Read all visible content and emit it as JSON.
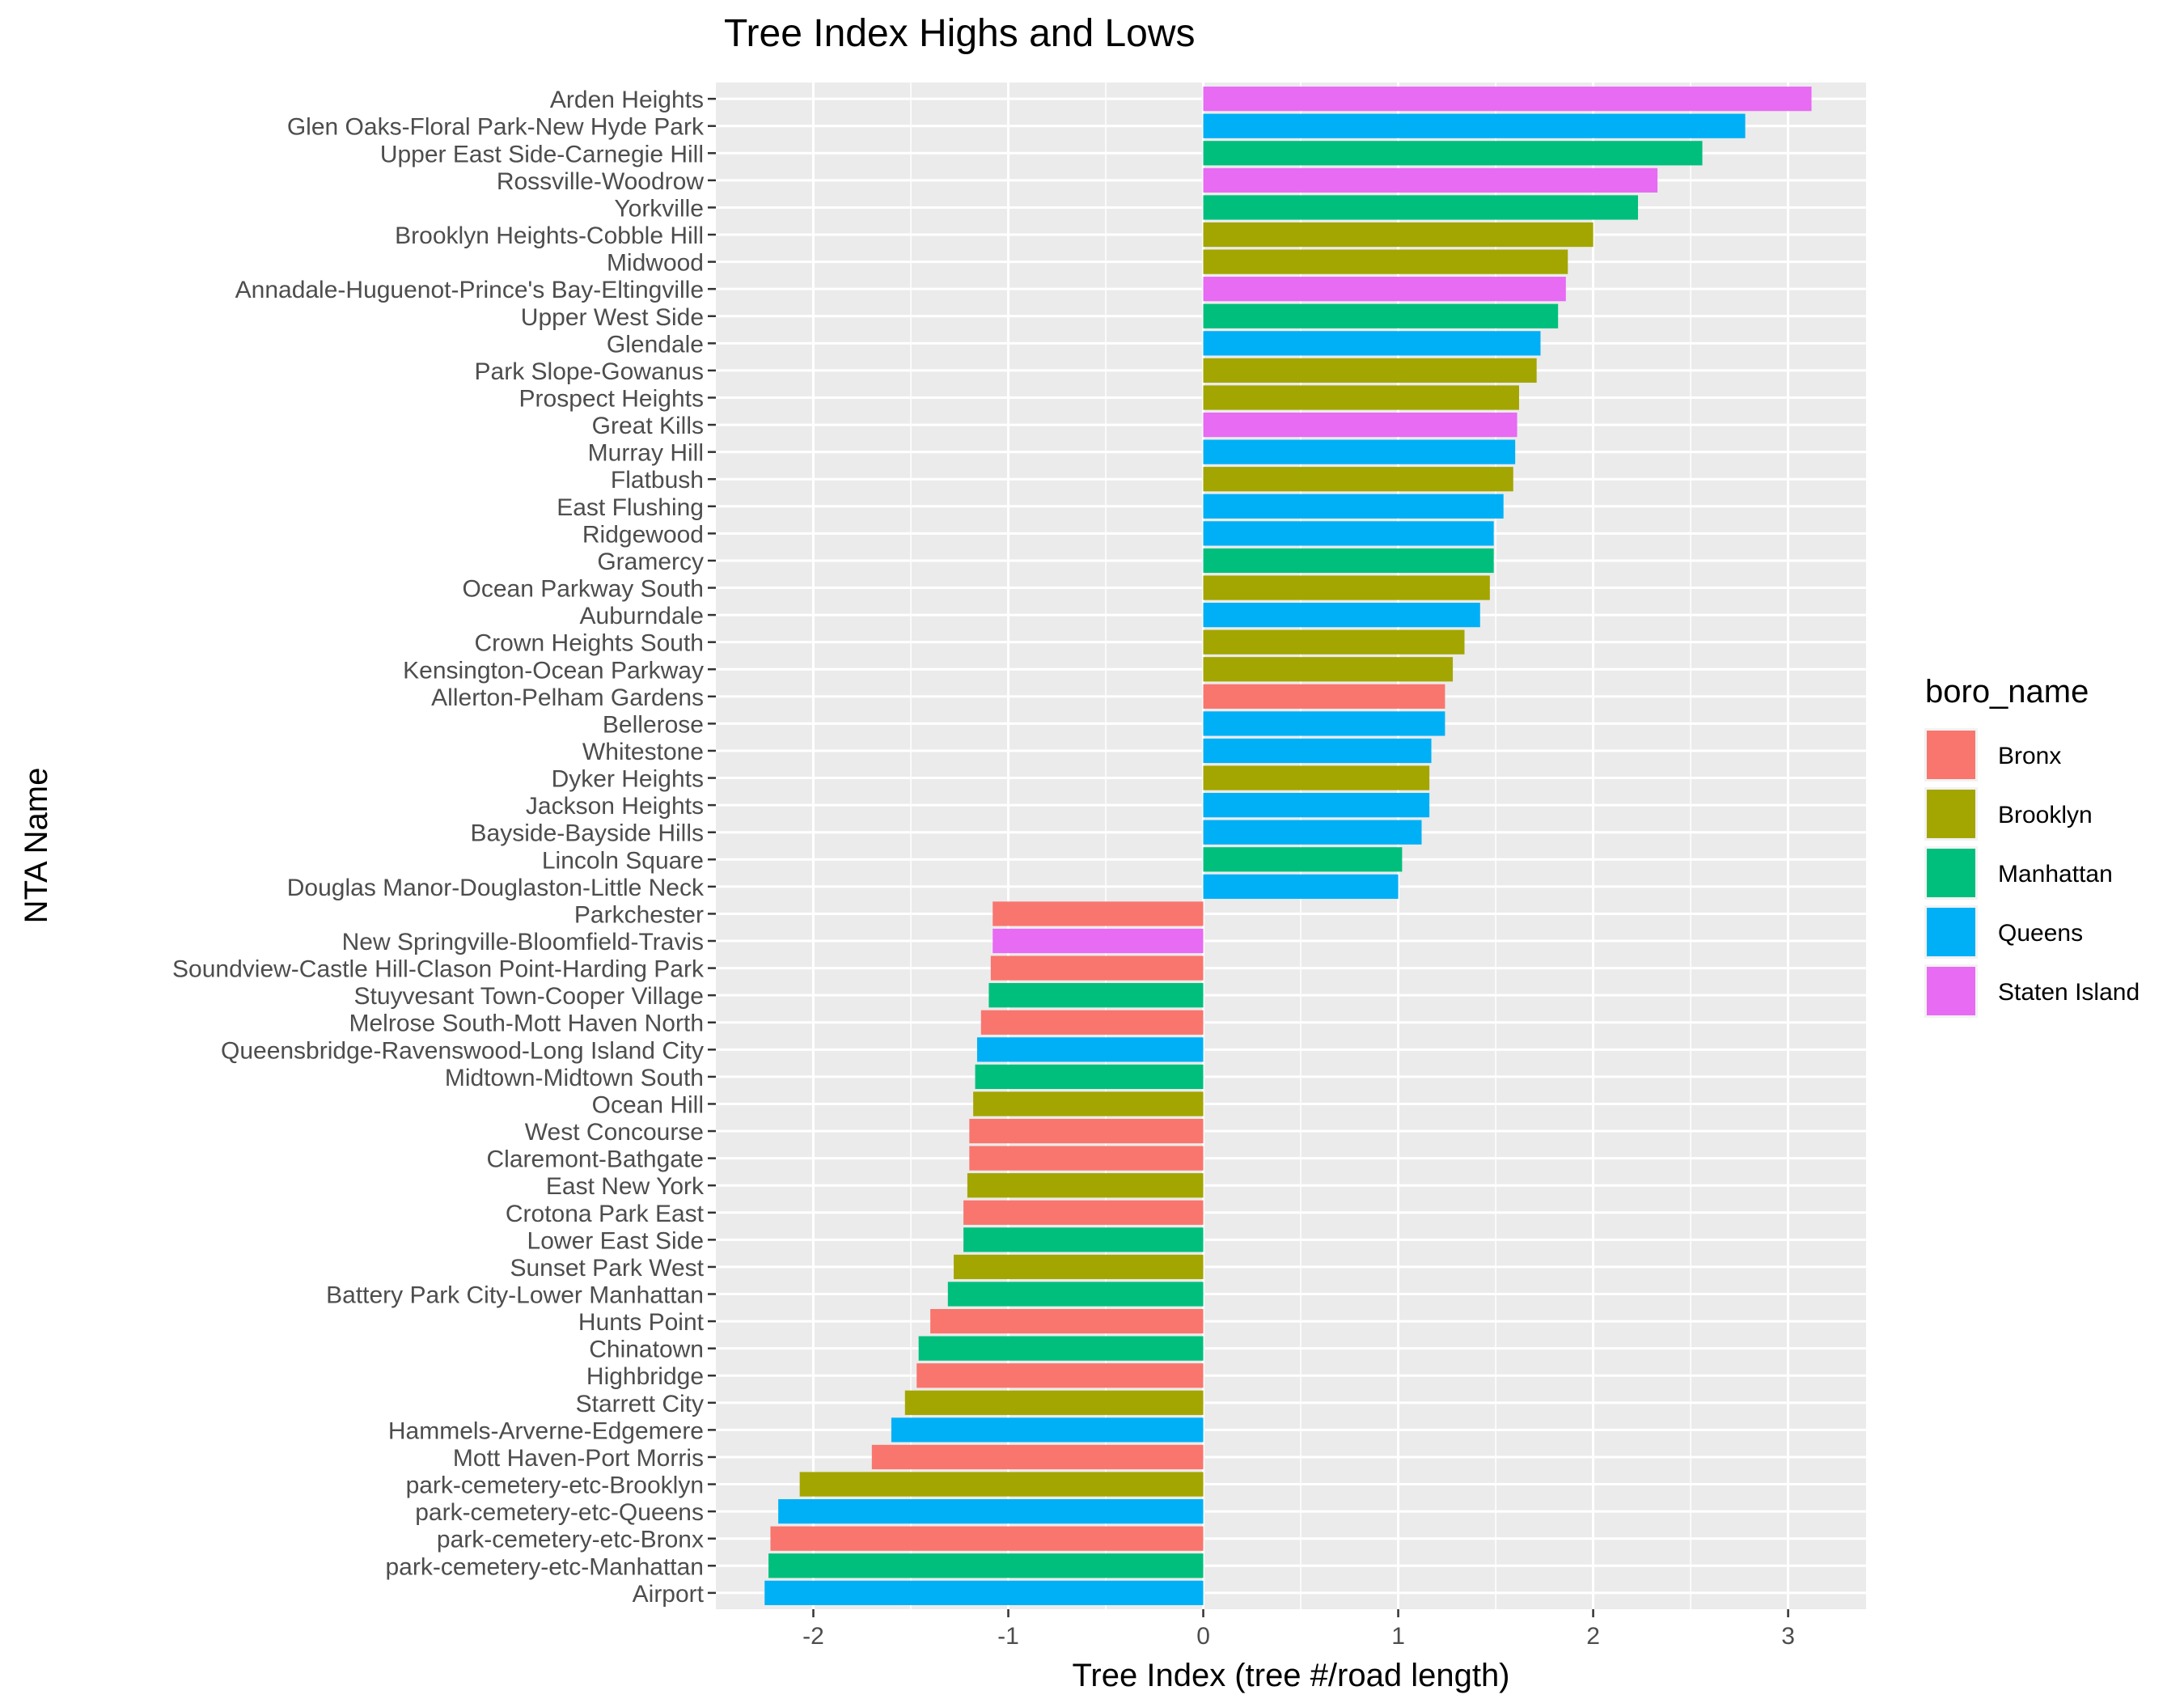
{
  "chart_data": {
    "type": "bar",
    "orientation": "horizontal",
    "title": "Tree Index Highs and Lows",
    "xlabel": "Tree Index (tree #/road length)",
    "ylabel": "NTA Name",
    "xlim": [
      -2.5,
      3.4
    ],
    "xticks": [
      -2,
      -1,
      0,
      1,
      2,
      3
    ],
    "xtick_labels": [
      "-2",
      "-1",
      "0",
      "1",
      "2",
      "3"
    ],
    "grid": true,
    "legend_position": "right",
    "legend": {
      "title": "boro_name",
      "items": [
        {
          "name": "Bronx",
          "color": "#F8766D"
        },
        {
          "name": "Brooklyn",
          "color": "#A3A500"
        },
        {
          "name": "Manhattan",
          "color": "#00BF7D"
        },
        {
          "name": "Queens",
          "color": "#00B0F6"
        },
        {
          "name": "Staten Island",
          "color": "#E76BF3"
        }
      ]
    },
    "bars": [
      {
        "name": "Arden Heights",
        "value": 3.12,
        "boro": "Staten Island"
      },
      {
        "name": "Glen Oaks-Floral Park-New Hyde Park",
        "value": 2.78,
        "boro": "Queens"
      },
      {
        "name": "Upper East Side-Carnegie Hill",
        "value": 2.56,
        "boro": "Manhattan"
      },
      {
        "name": "Rossville-Woodrow",
        "value": 2.33,
        "boro": "Staten Island"
      },
      {
        "name": "Yorkville",
        "value": 2.23,
        "boro": "Manhattan"
      },
      {
        "name": "Brooklyn Heights-Cobble Hill",
        "value": 2.0,
        "boro": "Brooklyn"
      },
      {
        "name": "Midwood",
        "value": 1.87,
        "boro": "Brooklyn"
      },
      {
        "name": "Annadale-Huguenot-Prince's Bay-Eltingville",
        "value": 1.86,
        "boro": "Staten Island"
      },
      {
        "name": "Upper West Side",
        "value": 1.82,
        "boro": "Manhattan"
      },
      {
        "name": "Glendale",
        "value": 1.73,
        "boro": "Queens"
      },
      {
        "name": "Park Slope-Gowanus",
        "value": 1.71,
        "boro": "Brooklyn"
      },
      {
        "name": "Prospect Heights",
        "value": 1.62,
        "boro": "Brooklyn"
      },
      {
        "name": "Great Kills",
        "value": 1.61,
        "boro": "Staten Island"
      },
      {
        "name": "Murray Hill",
        "value": 1.6,
        "boro": "Queens"
      },
      {
        "name": "Flatbush",
        "value": 1.59,
        "boro": "Brooklyn"
      },
      {
        "name": "East Flushing",
        "value": 1.54,
        "boro": "Queens"
      },
      {
        "name": "Ridgewood",
        "value": 1.49,
        "boro": "Queens"
      },
      {
        "name": "Gramercy",
        "value": 1.49,
        "boro": "Manhattan"
      },
      {
        "name": "Ocean Parkway South",
        "value": 1.47,
        "boro": "Brooklyn"
      },
      {
        "name": "Auburndale",
        "value": 1.42,
        "boro": "Queens"
      },
      {
        "name": "Crown Heights South",
        "value": 1.34,
        "boro": "Brooklyn"
      },
      {
        "name": "Kensington-Ocean Parkway",
        "value": 1.28,
        "boro": "Brooklyn"
      },
      {
        "name": "Allerton-Pelham Gardens",
        "value": 1.24,
        "boro": "Bronx"
      },
      {
        "name": "Bellerose",
        "value": 1.24,
        "boro": "Queens"
      },
      {
        "name": "Whitestone",
        "value": 1.17,
        "boro": "Queens"
      },
      {
        "name": "Dyker Heights",
        "value": 1.16,
        "boro": "Brooklyn"
      },
      {
        "name": "Jackson Heights",
        "value": 1.16,
        "boro": "Queens"
      },
      {
        "name": "Bayside-Bayside Hills",
        "value": 1.12,
        "boro": "Queens"
      },
      {
        "name": "Lincoln Square",
        "value": 1.02,
        "boro": "Manhattan"
      },
      {
        "name": "Douglas Manor-Douglaston-Little Neck",
        "value": 1.0,
        "boro": "Queens"
      },
      {
        "name": "Parkchester",
        "value": -1.08,
        "boro": "Bronx"
      },
      {
        "name": "New Springville-Bloomfield-Travis",
        "value": -1.08,
        "boro": "Staten Island"
      },
      {
        "name": "Soundview-Castle Hill-Clason Point-Harding Park",
        "value": -1.09,
        "boro": "Bronx"
      },
      {
        "name": "Stuyvesant Town-Cooper Village",
        "value": -1.1,
        "boro": "Manhattan"
      },
      {
        "name": "Melrose South-Mott Haven North",
        "value": -1.14,
        "boro": "Bronx"
      },
      {
        "name": "Queensbridge-Ravenswood-Long Island City",
        "value": -1.16,
        "boro": "Queens"
      },
      {
        "name": "Midtown-Midtown South",
        "value": -1.17,
        "boro": "Manhattan"
      },
      {
        "name": "Ocean Hill",
        "value": -1.18,
        "boro": "Brooklyn"
      },
      {
        "name": "West Concourse",
        "value": -1.2,
        "boro": "Bronx"
      },
      {
        "name": "Claremont-Bathgate",
        "value": -1.2,
        "boro": "Bronx"
      },
      {
        "name": "East New York",
        "value": -1.21,
        "boro": "Brooklyn"
      },
      {
        "name": "Crotona Park East",
        "value": -1.23,
        "boro": "Bronx"
      },
      {
        "name": "Lower East Side",
        "value": -1.23,
        "boro": "Manhattan"
      },
      {
        "name": "Sunset Park West",
        "value": -1.28,
        "boro": "Brooklyn"
      },
      {
        "name": "Battery Park City-Lower Manhattan",
        "value": -1.31,
        "boro": "Manhattan"
      },
      {
        "name": "Hunts Point",
        "value": -1.4,
        "boro": "Bronx"
      },
      {
        "name": "Chinatown",
        "value": -1.46,
        "boro": "Manhattan"
      },
      {
        "name": "Highbridge",
        "value": -1.47,
        "boro": "Bronx"
      },
      {
        "name": "Starrett City",
        "value": -1.53,
        "boro": "Brooklyn"
      },
      {
        "name": "Hammels-Arverne-Edgemere",
        "value": -1.6,
        "boro": "Queens"
      },
      {
        "name": "Mott Haven-Port Morris",
        "value": -1.7,
        "boro": "Bronx"
      },
      {
        "name": "park-cemetery-etc-Brooklyn",
        "value": -2.07,
        "boro": "Brooklyn"
      },
      {
        "name": "park-cemetery-etc-Queens",
        "value": -2.18,
        "boro": "Queens"
      },
      {
        "name": "park-cemetery-etc-Bronx",
        "value": -2.22,
        "boro": "Bronx"
      },
      {
        "name": "park-cemetery-etc-Manhattan",
        "value": -2.23,
        "boro": "Manhattan"
      },
      {
        "name": "Airport",
        "value": -2.25,
        "boro": "Queens"
      }
    ]
  }
}
